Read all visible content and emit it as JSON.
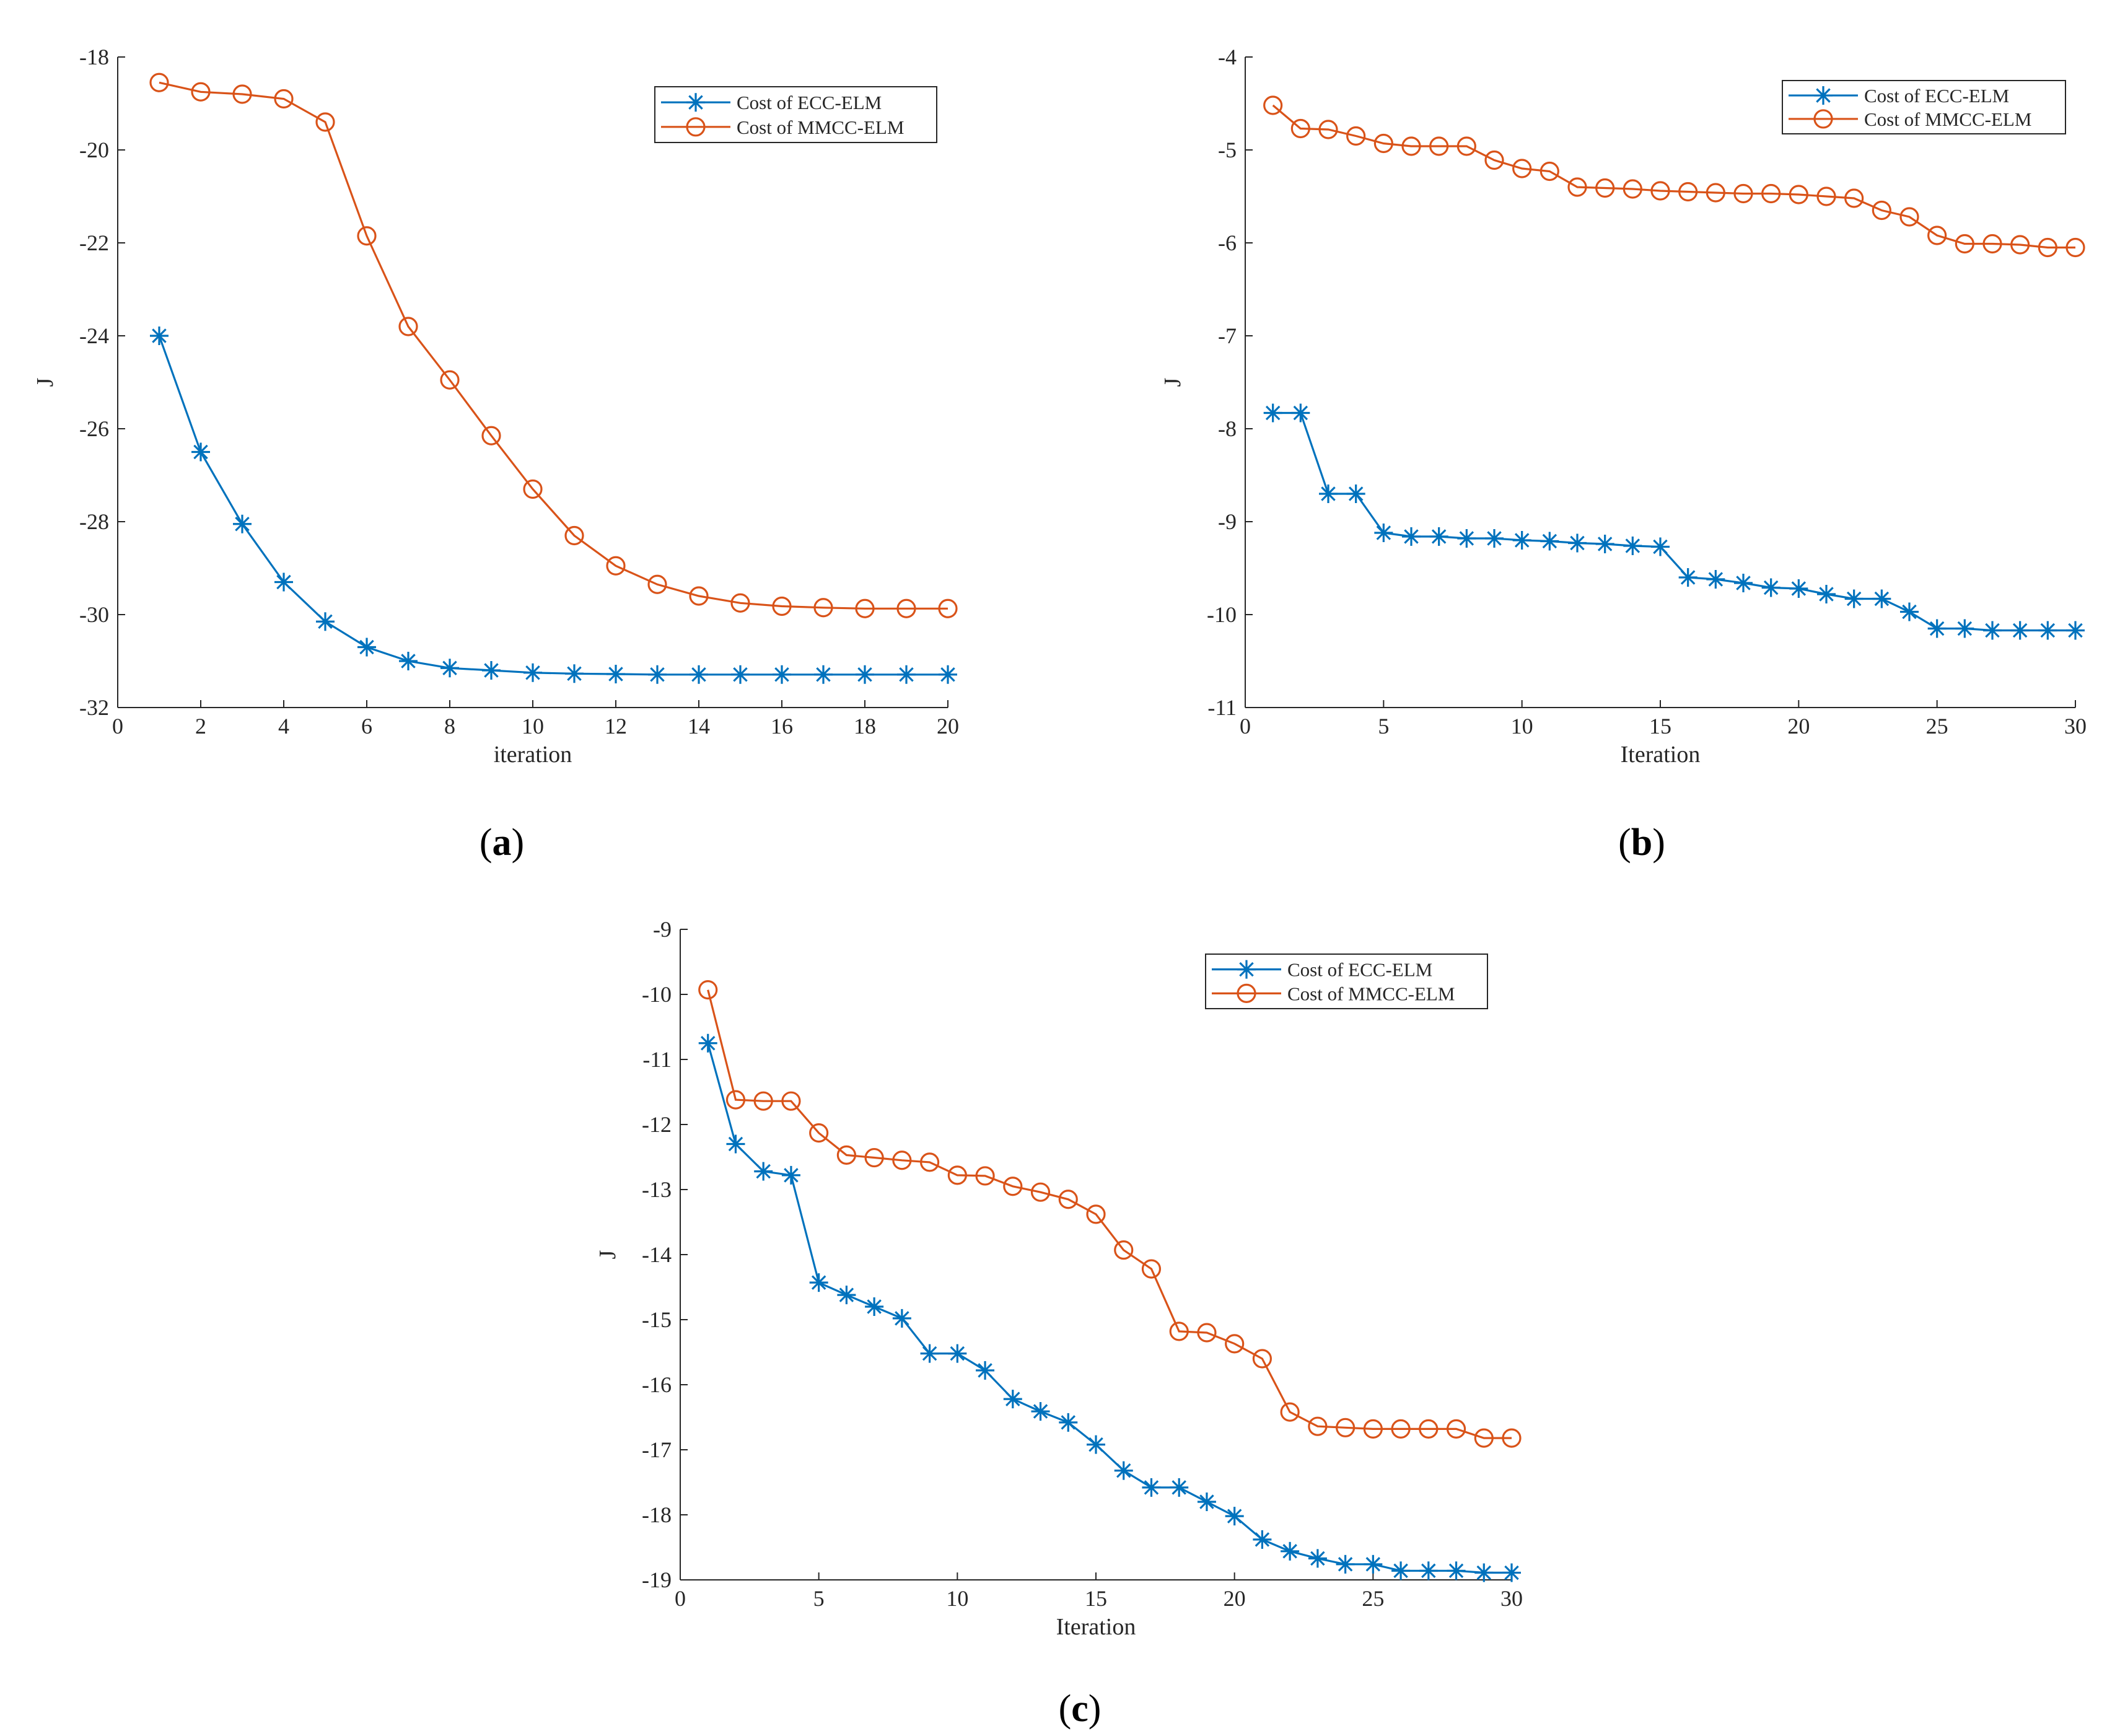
{
  "colors": {
    "ecc": "#0072BD",
    "mmcc": "#D95319",
    "axis": "#262626"
  },
  "chart_data": [
    {
      "type": "line",
      "panel": "a",
      "caption": {
        "open": "(",
        "letter": "a",
        "close": ")"
      },
      "xlabel": "iteration",
      "ylabel": "J",
      "xlim": [
        0,
        20
      ],
      "ylim": [
        -32,
        -18
      ],
      "xticks": [
        0,
        2,
        4,
        6,
        8,
        10,
        12,
        14,
        16,
        18,
        20
      ],
      "yticks": [
        -32,
        -30,
        -28,
        -26,
        -24,
        -22,
        -20,
        -18
      ],
      "legend_position": "top-right",
      "series": [
        {
          "name": "Cost of ECC-ELM",
          "marker": "asterisk",
          "x": [
            1,
            2,
            3,
            4,
            5,
            6,
            7,
            8,
            9,
            10,
            11,
            12,
            13,
            14,
            15,
            16,
            17,
            18,
            19,
            20
          ],
          "values": [
            -24.0,
            -26.5,
            -28.05,
            -29.3,
            -30.15,
            -30.7,
            -31.0,
            -31.15,
            -31.2,
            -31.25,
            -31.27,
            -31.28,
            -31.29,
            -31.29,
            -31.29,
            -31.29,
            -31.29,
            -31.29,
            -31.29,
            -31.29
          ]
        },
        {
          "name": "Cost of MMCC-ELM",
          "marker": "circle",
          "x": [
            1,
            2,
            3,
            4,
            5,
            6,
            7,
            8,
            9,
            10,
            11,
            12,
            13,
            14,
            15,
            16,
            17,
            18,
            19,
            20
          ],
          "values": [
            -18.55,
            -18.75,
            -18.8,
            -18.9,
            -19.4,
            -21.85,
            -23.8,
            -24.95,
            -26.15,
            -27.3,
            -28.3,
            -28.95,
            -29.35,
            -29.6,
            -29.75,
            -29.82,
            -29.85,
            -29.87,
            -29.87,
            -29.87
          ]
        }
      ]
    },
    {
      "type": "line",
      "panel": "b",
      "caption": {
        "open": "(",
        "letter": "b",
        "close": ")"
      },
      "xlabel": "Iteration",
      "ylabel": "J",
      "xlim": [
        0,
        30
      ],
      "ylim": [
        -11,
        -4
      ],
      "xticks": [
        0,
        5,
        10,
        15,
        20,
        25,
        30
      ],
      "yticks": [
        -11,
        -10,
        -9,
        -8,
        -7,
        -6,
        -5,
        -4
      ],
      "legend_position": "top-right",
      "series": [
        {
          "name": "Cost of ECC-ELM",
          "marker": "asterisk",
          "x": [
            1,
            2,
            3,
            4,
            5,
            6,
            7,
            8,
            9,
            10,
            11,
            12,
            13,
            14,
            15,
            16,
            17,
            18,
            19,
            20,
            21,
            22,
            23,
            24,
            25,
            26,
            27,
            28,
            29,
            30
          ],
          "values": [
            -7.83,
            -7.83,
            -8.7,
            -8.7,
            -9.12,
            -9.16,
            -9.16,
            -9.18,
            -9.18,
            -9.2,
            -9.21,
            -9.23,
            -9.24,
            -9.26,
            -9.27,
            -9.6,
            -9.62,
            -9.66,
            -9.71,
            -9.72,
            -9.78,
            -9.83,
            -9.83,
            -9.97,
            -10.15,
            -10.15,
            -10.17,
            -10.17,
            -10.17,
            -10.17
          ]
        },
        {
          "name": "Cost of MMCC-ELM",
          "marker": "circle",
          "x": [
            1,
            2,
            3,
            4,
            5,
            6,
            7,
            8,
            9,
            10,
            11,
            12,
            13,
            14,
            15,
            16,
            17,
            18,
            19,
            20,
            21,
            22,
            23,
            24,
            25,
            26,
            27,
            28,
            29,
            30
          ],
          "values": [
            -4.52,
            -4.77,
            -4.78,
            -4.85,
            -4.93,
            -4.96,
            -4.96,
            -4.96,
            -5.11,
            -5.2,
            -5.23,
            -5.4,
            -5.41,
            -5.42,
            -5.44,
            -5.45,
            -5.46,
            -5.47,
            -5.47,
            -5.48,
            -5.5,
            -5.52,
            -5.65,
            -5.72,
            -5.92,
            -6.01,
            -6.01,
            -6.02,
            -6.05,
            -6.05
          ]
        }
      ]
    },
    {
      "type": "line",
      "panel": "c",
      "caption": {
        "open": "(",
        "letter": "c",
        "close": ")"
      },
      "xlabel": "Iteration",
      "ylabel": "J",
      "xlim": [
        0,
        30
      ],
      "ylim": [
        -19,
        -9
      ],
      "xticks": [
        0,
        5,
        10,
        15,
        20,
        25,
        30
      ],
      "yticks": [
        -19,
        -18,
        -17,
        -16,
        -15,
        -14,
        -13,
        -12,
        -11,
        -10,
        -9
      ],
      "legend_position": "top-right",
      "series": [
        {
          "name": "Cost of ECC-ELM",
          "marker": "asterisk",
          "x": [
            1,
            2,
            3,
            4,
            5,
            6,
            7,
            8,
            9,
            10,
            11,
            12,
            13,
            14,
            15,
            16,
            17,
            18,
            19,
            20,
            21,
            22,
            23,
            24,
            25,
            26,
            27,
            28,
            29,
            30
          ],
          "values": [
            -10.75,
            -12.3,
            -12.72,
            -12.78,
            -14.43,
            -14.62,
            -14.8,
            -14.98,
            -15.52,
            -15.52,
            -15.78,
            -16.22,
            -16.41,
            -16.58,
            -16.92,
            -17.32,
            -17.58,
            -17.58,
            -17.8,
            -18.02,
            -18.38,
            -18.56,
            -18.67,
            -18.76,
            -18.76,
            -18.86,
            -18.86,
            -18.86,
            -18.89,
            -18.89
          ]
        },
        {
          "name": "Cost of MMCC-ELM",
          "marker": "circle",
          "x": [
            1,
            2,
            3,
            4,
            5,
            6,
            7,
            8,
            9,
            10,
            11,
            12,
            13,
            14,
            15,
            16,
            17,
            18,
            19,
            20,
            21,
            22,
            23,
            24,
            25,
            26,
            27,
            28,
            29,
            30
          ],
          "values": [
            -9.93,
            -11.62,
            -11.64,
            -11.64,
            -12.13,
            -12.47,
            -12.51,
            -12.55,
            -12.58,
            -12.78,
            -12.79,
            -12.95,
            -13.04,
            -13.15,
            -13.38,
            -13.93,
            -14.22,
            -15.18,
            -15.2,
            -15.37,
            -15.6,
            -16.42,
            -16.64,
            -16.66,
            -16.68,
            -16.68,
            -16.68,
            -16.68,
            -16.82,
            -16.82
          ]
        }
      ]
    }
  ]
}
